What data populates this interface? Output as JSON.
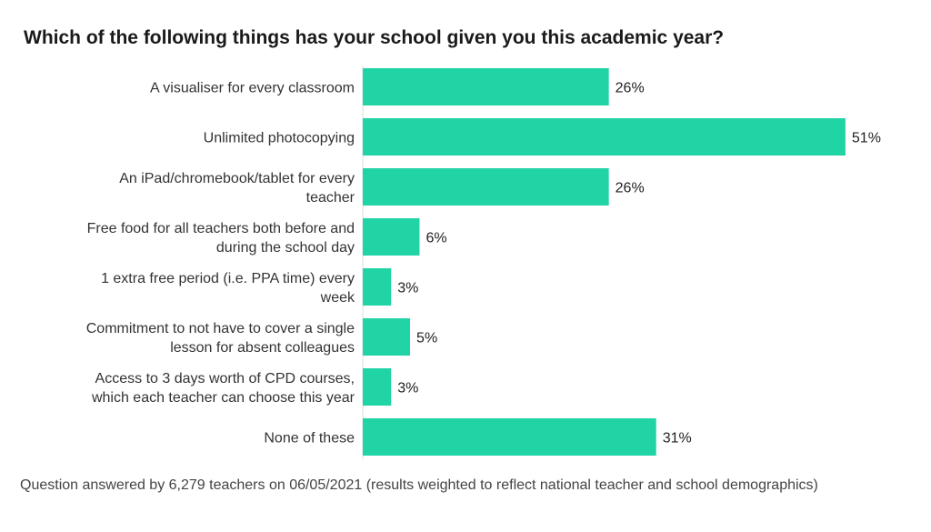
{
  "title": "Which of the following things has your school given you this academic year?",
  "footnote": "Question answered by 6,279 teachers on 06/05/2021 (results weighted to reflect national teacher and school demographics)",
  "colors": {
    "bar": "#20d4a6",
    "axis": "#dddddd"
  },
  "chart_data": {
    "type": "bar",
    "orientation": "horizontal",
    "title": "Which of the following things has your school given you this academic year?",
    "categories": [
      [
        "A visualiser for every classroom"
      ],
      [
        "Unlimited photocopying"
      ],
      [
        "An iPad/chromebook/tablet for every",
        "teacher"
      ],
      [
        "Free food for all teachers both before and",
        "during the school day"
      ],
      [
        "1 extra free period  (i.e. PPA time) every",
        "week"
      ],
      [
        "Commitment to not have to cover a single",
        "lesson for absent colleagues"
      ],
      [
        "Access to 3 days worth of CPD courses,",
        "which each teacher can choose this year"
      ],
      [
        "None of these"
      ]
    ],
    "values": [
      26,
      51,
      26,
      6,
      3,
      5,
      3,
      31
    ],
    "value_labels": [
      "26%",
      "51%",
      "26%",
      "6%",
      "3%",
      "5%",
      "3%",
      "31%"
    ],
    "unit": "%",
    "xlim": [
      0,
      51
    ],
    "grid": false,
    "legend": "none"
  }
}
